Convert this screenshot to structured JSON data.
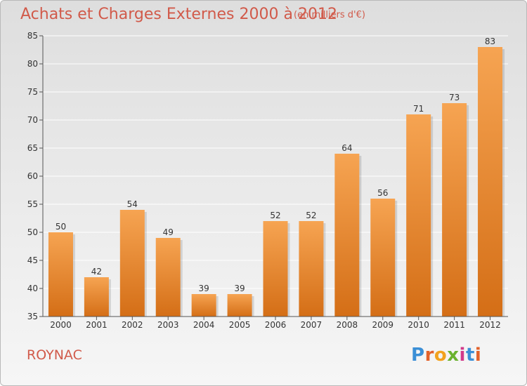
{
  "title": "Achats et Charges Externes 2000 à 2012",
  "unit_note": "(en milliers d'€)",
  "commune": "ROYNAC",
  "brand": "Proxiti",
  "colors": {
    "title": "#d15a4a",
    "bar_top": "#f6a452",
    "bar_bottom": "#d46e16",
    "grid": "#ffffff",
    "axis": "#555555"
  },
  "chart_data": {
    "type": "bar",
    "categories": [
      "2000",
      "2001",
      "2002",
      "2003",
      "2004",
      "2005",
      "2006",
      "2007",
      "2008",
      "2009",
      "2010",
      "2011",
      "2012"
    ],
    "values": [
      50,
      42,
      54,
      49,
      39,
      39,
      52,
      52,
      64,
      56,
      71,
      73,
      83
    ],
    "ylim": [
      35,
      85
    ],
    "yticks": [
      35,
      40,
      45,
      50,
      55,
      60,
      65,
      70,
      75,
      80,
      85
    ],
    "grid": true,
    "data_labels": true
  }
}
